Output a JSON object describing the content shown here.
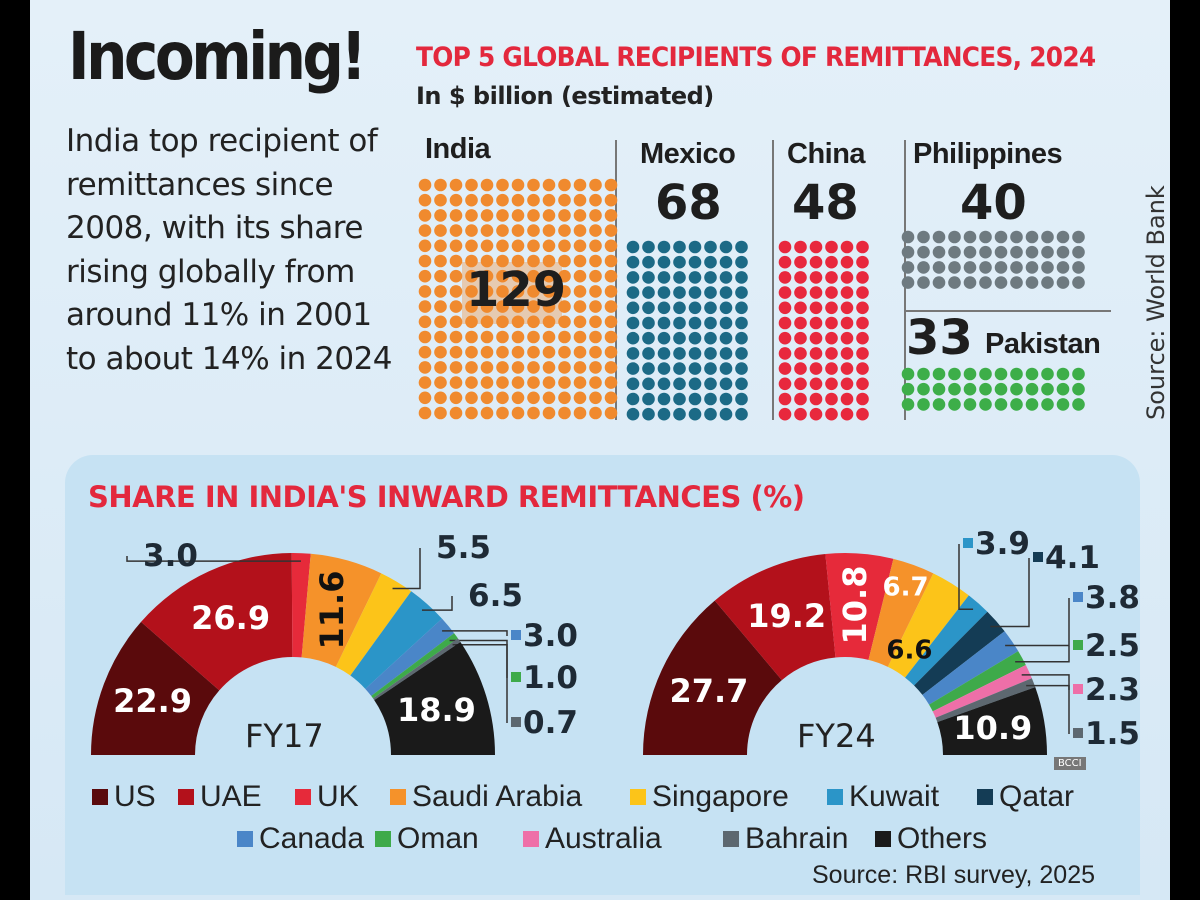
{
  "header": {
    "title": "Incoming!",
    "description": "India top recipient of remittances since 2008, with its share rising globally from around 11% in 2001 to about 14% in 2024"
  },
  "top_chart": {
    "title": "TOP 5 GLOBAL RECIPIENTS OF REMITTANCES, 2024",
    "subtitle": "In $ billion (estimated)",
    "source": "Source: World Bank"
  },
  "bottom_chart": {
    "title": "SHARE IN INDIA'S INWARD REMITTANCES (%)",
    "source": "Source: RBI survey, 2025"
  },
  "watermark": "BCCI",
  "chart_data": [
    {
      "type": "dot-grid",
      "title": "TOP 5 GLOBAL RECIPIENTS OF REMITTANCES, 2024",
      "unit": "$ billion (estimated)",
      "categories": [
        "India",
        "Mexico",
        "China",
        "Philippines",
        "Pakistan"
      ],
      "values": [
        129,
        68,
        48,
        40,
        33
      ],
      "colors": [
        "#f08a2e",
        "#1c6a86",
        "#e8283d",
        "#6e7a80",
        "#3dae49"
      ]
    },
    {
      "type": "pie",
      "variant": "semi-donut",
      "label": "FY17",
      "categories": [
        "US",
        "UAE",
        "UK",
        "Saudi Arabia",
        "Singapore",
        "Kuwait",
        "Canada",
        "Oman",
        "Bahrain",
        "Others"
      ],
      "values": [
        22.9,
        26.9,
        3.0,
        11.6,
        5.5,
        6.5,
        3.0,
        1.0,
        0.7,
        18.9
      ]
    },
    {
      "type": "pie",
      "variant": "semi-donut",
      "label": "FY24",
      "categories": [
        "US",
        "UAE",
        "UK",
        "Saudi Arabia",
        "Singapore",
        "Kuwait",
        "Qatar",
        "Canada",
        "Oman",
        "Australia",
        "Bahrain",
        "Others"
      ],
      "values": [
        27.7,
        19.2,
        10.8,
        6.7,
        6.6,
        3.9,
        4.1,
        3.8,
        2.5,
        2.3,
        1.5,
        10.9
      ]
    }
  ],
  "legend": [
    {
      "name": "US",
      "color": "#5a0a0c"
    },
    {
      "name": "UAE",
      "color": "#b3111b"
    },
    {
      "name": "UK",
      "color": "#e62a3a"
    },
    {
      "name": "Saudi Arabia",
      "color": "#f5922a"
    },
    {
      "name": "Singapore",
      "color": "#fcc419"
    },
    {
      "name": "Kuwait",
      "color": "#2b95c8"
    },
    {
      "name": "Qatar",
      "color": "#143c55"
    },
    {
      "name": "Canada",
      "color": "#4a86c8"
    },
    {
      "name": "Oman",
      "color": "#3eaa4a"
    },
    {
      "name": "Australia",
      "color": "#ee6fa8"
    },
    {
      "name": "Bahrain",
      "color": "#5d6870"
    },
    {
      "name": "Others",
      "color": "#1a1a1a"
    }
  ]
}
